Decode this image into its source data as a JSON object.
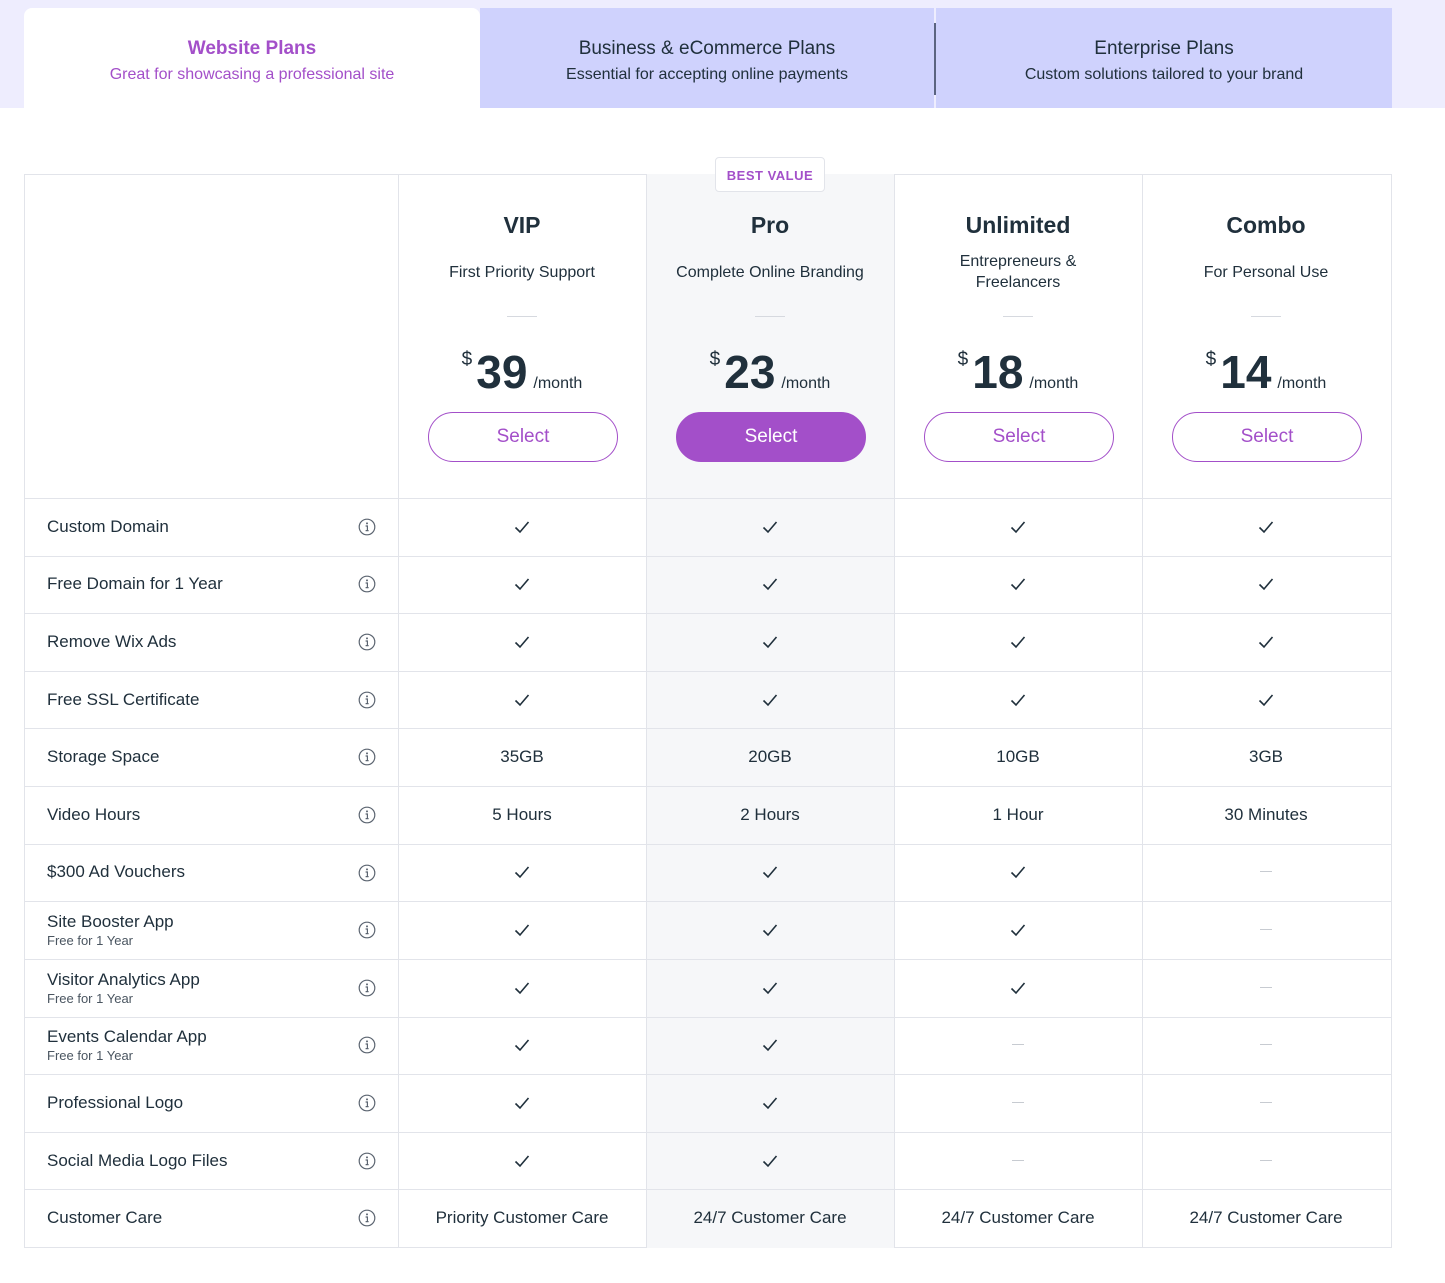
{
  "tabs": {
    "active": 0,
    "items": [
      {
        "title": "Website Plans",
        "subtitle": "Great for showcasing a professional site"
      },
      {
        "title": "Business & eCommerce Plans",
        "subtitle": "Essential for accepting online payments"
      },
      {
        "title": "Enterprise Plans",
        "subtitle": "Custom solutions tailored to your brand"
      }
    ]
  },
  "plans": [
    {
      "name": "VIP",
      "description": "First Priority Support",
      "currency": "$",
      "price": "39",
      "period": "/month",
      "button": "Select"
    },
    {
      "name": "Pro",
      "description": "Complete Online Branding",
      "currency": "$",
      "price": "23",
      "period": "/month",
      "button": "Select",
      "badge": "BEST VALUE",
      "highlighted": true
    },
    {
      "name": "Unlimited",
      "description": "Entrepreneurs & Freelancers",
      "currency": "$",
      "price": "18",
      "period": "/month",
      "button": "Select"
    },
    {
      "name": "Combo",
      "description": "For Personal Use",
      "currency": "$",
      "price": "14",
      "period": "/month",
      "button": "Select"
    }
  ],
  "features": [
    {
      "label": "Custom Domain",
      "values": [
        true,
        true,
        true,
        true
      ]
    },
    {
      "label": "Free Domain for 1 Year",
      "values": [
        true,
        true,
        true,
        true
      ]
    },
    {
      "label": "Remove Wix Ads",
      "values": [
        true,
        true,
        true,
        true
      ]
    },
    {
      "label": "Free SSL Certificate",
      "values": [
        true,
        true,
        true,
        true
      ]
    },
    {
      "label": "Storage Space",
      "values": [
        "35GB",
        "20GB",
        "10GB",
        "3GB"
      ]
    },
    {
      "label": "Video Hours",
      "values": [
        "5 Hours",
        "2 Hours",
        "1 Hour",
        "30 Minutes"
      ]
    },
    {
      "label": "$300 Ad Vouchers",
      "values": [
        true,
        true,
        true,
        false
      ]
    },
    {
      "label": "Site Booster App",
      "note": "Free for 1 Year",
      "values": [
        true,
        true,
        true,
        false
      ]
    },
    {
      "label": "Visitor Analytics App",
      "note": "Free for 1 Year",
      "values": [
        true,
        true,
        true,
        false
      ]
    },
    {
      "label": "Events Calendar App",
      "note": "Free for 1 Year",
      "values": [
        true,
        true,
        false,
        false
      ]
    },
    {
      "label": "Professional Logo",
      "values": [
        true,
        true,
        false,
        false
      ]
    },
    {
      "label": "Social Media Logo Files",
      "values": [
        true,
        true,
        false,
        false
      ]
    },
    {
      "label": "Customer Care",
      "values": [
        "Priority Customer Care",
        "24/7 Customer Care",
        "24/7 Customer Care",
        "24/7 Customer Care"
      ]
    }
  ]
}
